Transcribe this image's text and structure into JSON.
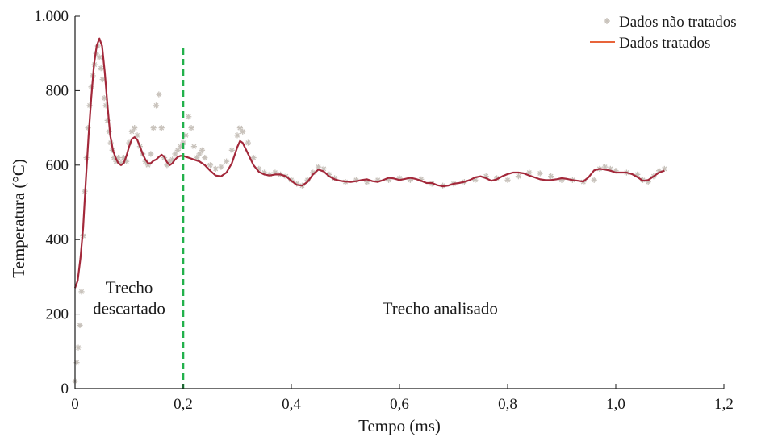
{
  "chart_data": {
    "type": "line",
    "title": "",
    "xlabel": "Tempo (ms)",
    "ylabel": "Temperatura (°C)",
    "xlim": [
      0,
      1.2
    ],
    "ylim": [
      0,
      1000
    ],
    "xticks": [
      0,
      0.2,
      0.4,
      0.6,
      0.8,
      1.0,
      1.2
    ],
    "xtick_labels": [
      "0",
      "0,2",
      "0,4",
      "0,6",
      "0,8",
      "1,0",
      "1,2"
    ],
    "yticks": [
      0,
      200,
      400,
      600,
      800,
      1000
    ],
    "ytick_labels": [
      "0",
      "200",
      "400",
      "600",
      "800",
      "1.000"
    ],
    "grid": false,
    "legend_position": "top-right",
    "colors": {
      "raw": "#c8c2bb",
      "treated": "#a3283a",
      "treated_legend": "#e8643a",
      "divider": "#22b14c",
      "axis": "#1a1a1a"
    },
    "vline": {
      "x": 0.2,
      "style": "dashed"
    },
    "annotations": [
      {
        "lines": [
          "Trecho",
          "descartado"
        ],
        "x": 0.1,
        "y": 230
      },
      {
        "lines": [
          "Trecho analisado"
        ],
        "x": 0.675,
        "y": 200
      }
    ],
    "series": [
      {
        "name": "Dados não tratados",
        "marker": "asterisk",
        "points": [
          [
            0.0,
            20
          ],
          [
            0.003,
            70
          ],
          [
            0.006,
            110
          ],
          [
            0.009,
            170
          ],
          [
            0.012,
            260
          ],
          [
            0.015,
            410
          ],
          [
            0.018,
            530
          ],
          [
            0.021,
            620
          ],
          [
            0.024,
            700
          ],
          [
            0.027,
            760
          ],
          [
            0.03,
            810
          ],
          [
            0.033,
            840
          ],
          [
            0.036,
            870
          ],
          [
            0.039,
            900
          ],
          [
            0.042,
            920
          ],
          [
            0.045,
            890
          ],
          [
            0.048,
            860
          ],
          [
            0.051,
            830
          ],
          [
            0.054,
            780
          ],
          [
            0.057,
            760
          ],
          [
            0.06,
            720
          ],
          [
            0.063,
            690
          ],
          [
            0.066,
            660
          ],
          [
            0.069,
            640
          ],
          [
            0.072,
            620
          ],
          [
            0.076,
            610
          ],
          [
            0.08,
            620
          ],
          [
            0.085,
            605
          ],
          [
            0.09,
            620
          ],
          [
            0.095,
            610
          ],
          [
            0.1,
            660
          ],
          [
            0.105,
            690
          ],
          [
            0.11,
            700
          ],
          [
            0.115,
            680
          ],
          [
            0.12,
            650
          ],
          [
            0.125,
            630
          ],
          [
            0.13,
            610
          ],
          [
            0.135,
            600
          ],
          [
            0.14,
            630
          ],
          [
            0.145,
            700
          ],
          [
            0.15,
            760
          ],
          [
            0.155,
            790
          ],
          [
            0.16,
            700
          ],
          [
            0.165,
            620
          ],
          [
            0.17,
            600
          ],
          [
            0.175,
            610
          ],
          [
            0.18,
            615
          ],
          [
            0.185,
            630
          ],
          [
            0.19,
            640
          ],
          [
            0.195,
            650
          ],
          [
            0.2,
            660
          ],
          [
            0.205,
            680
          ],
          [
            0.21,
            730
          ],
          [
            0.215,
            700
          ],
          [
            0.22,
            650
          ],
          [
            0.225,
            620
          ],
          [
            0.23,
            630
          ],
          [
            0.235,
            640
          ],
          [
            0.24,
            620
          ],
          [
            0.25,
            600
          ],
          [
            0.26,
            590
          ],
          [
            0.27,
            595
          ],
          [
            0.28,
            610
          ],
          [
            0.29,
            640
          ],
          [
            0.3,
            680
          ],
          [
            0.305,
            700
          ],
          [
            0.31,
            690
          ],
          [
            0.32,
            660
          ],
          [
            0.33,
            620
          ],
          [
            0.34,
            590
          ],
          [
            0.35,
            580
          ],
          [
            0.36,
            575
          ],
          [
            0.37,
            580
          ],
          [
            0.38,
            575
          ],
          [
            0.39,
            570
          ],
          [
            0.4,
            560
          ],
          [
            0.41,
            550
          ],
          [
            0.42,
            545
          ],
          [
            0.43,
            560
          ],
          [
            0.44,
            580
          ],
          [
            0.45,
            595
          ],
          [
            0.46,
            590
          ],
          [
            0.47,
            575
          ],
          [
            0.48,
            565
          ],
          [
            0.5,
            555
          ],
          [
            0.52,
            560
          ],
          [
            0.54,
            555
          ],
          [
            0.56,
            560
          ],
          [
            0.58,
            560
          ],
          [
            0.6,
            565
          ],
          [
            0.62,
            560
          ],
          [
            0.64,
            562
          ],
          [
            0.66,
            550
          ],
          [
            0.68,
            545
          ],
          [
            0.7,
            550
          ],
          [
            0.72,
            555
          ],
          [
            0.74,
            560
          ],
          [
            0.76,
            570
          ],
          [
            0.78,
            565
          ],
          [
            0.8,
            560
          ],
          [
            0.82,
            570
          ],
          [
            0.84,
            580
          ],
          [
            0.86,
            578
          ],
          [
            0.88,
            570
          ],
          [
            0.9,
            560
          ],
          [
            0.92,
            560
          ],
          [
            0.94,
            555
          ],
          [
            0.96,
            560
          ],
          [
            0.97,
            590
          ],
          [
            0.98,
            595
          ],
          [
            0.99,
            590
          ],
          [
            1.0,
            585
          ],
          [
            1.02,
            580
          ],
          [
            1.04,
            575
          ],
          [
            1.05,
            560
          ],
          [
            1.06,
            555
          ],
          [
            1.07,
            570
          ],
          [
            1.08,
            585
          ],
          [
            1.09,
            590
          ]
        ]
      },
      {
        "name": "Dados tratados",
        "points": [
          [
            0.0,
            270
          ],
          [
            0.005,
            290
          ],
          [
            0.01,
            350
          ],
          [
            0.015,
            430
          ],
          [
            0.02,
            560
          ],
          [
            0.025,
            680
          ],
          [
            0.03,
            780
          ],
          [
            0.035,
            870
          ],
          [
            0.04,
            920
          ],
          [
            0.045,
            940
          ],
          [
            0.05,
            920
          ],
          [
            0.055,
            850
          ],
          [
            0.06,
            760
          ],
          [
            0.065,
            680
          ],
          [
            0.07,
            640
          ],
          [
            0.075,
            620
          ],
          [
            0.08,
            605
          ],
          [
            0.085,
            600
          ],
          [
            0.09,
            605
          ],
          [
            0.095,
            625
          ],
          [
            0.1,
            650
          ],
          [
            0.105,
            670
          ],
          [
            0.11,
            675
          ],
          [
            0.115,
            668
          ],
          [
            0.12,
            650
          ],
          [
            0.125,
            630
          ],
          [
            0.13,
            615
          ],
          [
            0.135,
            605
          ],
          [
            0.14,
            605
          ],
          [
            0.145,
            612
          ],
          [
            0.15,
            615
          ],
          [
            0.155,
            622
          ],
          [
            0.16,
            628
          ],
          [
            0.165,
            622
          ],
          [
            0.17,
            608
          ],
          [
            0.175,
            600
          ],
          [
            0.18,
            605
          ],
          [
            0.185,
            615
          ],
          [
            0.19,
            622
          ],
          [
            0.195,
            625
          ],
          [
            0.2,
            625
          ],
          [
            0.21,
            620
          ],
          [
            0.22,
            615
          ],
          [
            0.23,
            610
          ],
          [
            0.24,
            600
          ],
          [
            0.25,
            585
          ],
          [
            0.26,
            572
          ],
          [
            0.27,
            570
          ],
          [
            0.28,
            580
          ],
          [
            0.29,
            605
          ],
          [
            0.3,
            648
          ],
          [
            0.305,
            665
          ],
          [
            0.31,
            660
          ],
          [
            0.32,
            630
          ],
          [
            0.33,
            600
          ],
          [
            0.34,
            582
          ],
          [
            0.35,
            575
          ],
          [
            0.36,
            572
          ],
          [
            0.37,
            575
          ],
          [
            0.38,
            575
          ],
          [
            0.39,
            570
          ],
          [
            0.4,
            558
          ],
          [
            0.41,
            547
          ],
          [
            0.42,
            545
          ],
          [
            0.43,
            555
          ],
          [
            0.44,
            575
          ],
          [
            0.45,
            588
          ],
          [
            0.46,
            583
          ],
          [
            0.47,
            570
          ],
          [
            0.48,
            562
          ],
          [
            0.49,
            558
          ],
          [
            0.5,
            556
          ],
          [
            0.51,
            555
          ],
          [
            0.52,
            557
          ],
          [
            0.53,
            560
          ],
          [
            0.54,
            562
          ],
          [
            0.55,
            557
          ],
          [
            0.56,
            555
          ],
          [
            0.57,
            560
          ],
          [
            0.58,
            566
          ],
          [
            0.59,
            564
          ],
          [
            0.6,
            560
          ],
          [
            0.61,
            563
          ],
          [
            0.62,
            566
          ],
          [
            0.63,
            563
          ],
          [
            0.64,
            558
          ],
          [
            0.65,
            552
          ],
          [
            0.66,
            552
          ],
          [
            0.67,
            546
          ],
          [
            0.68,
            543
          ],
          [
            0.69,
            545
          ],
          [
            0.7,
            550
          ],
          [
            0.71,
            552
          ],
          [
            0.72,
            555
          ],
          [
            0.73,
            560
          ],
          [
            0.74,
            567
          ],
          [
            0.75,
            570
          ],
          [
            0.76,
            565
          ],
          [
            0.77,
            558
          ],
          [
            0.78,
            562
          ],
          [
            0.79,
            570
          ],
          [
            0.8,
            576
          ],
          [
            0.81,
            580
          ],
          [
            0.82,
            580
          ],
          [
            0.83,
            578
          ],
          [
            0.84,
            572
          ],
          [
            0.85,
            567
          ],
          [
            0.86,
            562
          ],
          [
            0.87,
            560
          ],
          [
            0.88,
            560
          ],
          [
            0.89,
            562
          ],
          [
            0.9,
            565
          ],
          [
            0.91,
            563
          ],
          [
            0.92,
            560
          ],
          [
            0.93,
            558
          ],
          [
            0.94,
            556
          ],
          [
            0.95,
            568
          ],
          [
            0.96,
            586
          ],
          [
            0.97,
            590
          ],
          [
            0.98,
            588
          ],
          [
            0.99,
            585
          ],
          [
            1.0,
            580
          ],
          [
            1.01,
            580
          ],
          [
            1.02,
            580
          ],
          [
            1.03,
            576
          ],
          [
            1.04,
            568
          ],
          [
            1.05,
            558
          ],
          [
            1.06,
            560
          ],
          [
            1.07,
            570
          ],
          [
            1.08,
            580
          ],
          [
            1.09,
            585
          ]
        ]
      }
    ]
  }
}
